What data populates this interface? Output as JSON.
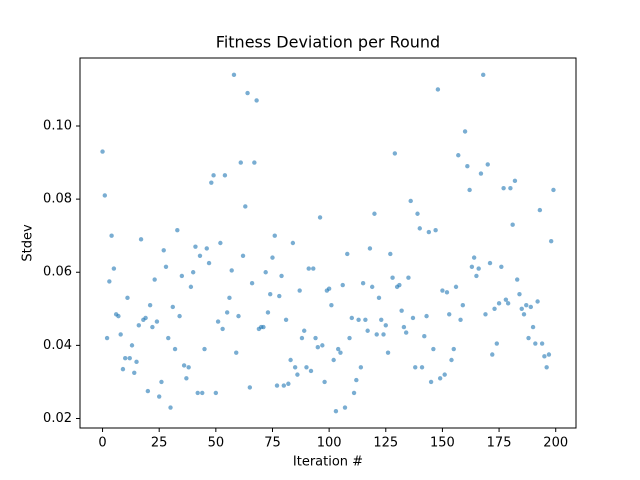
{
  "chart_data": {
    "type": "scatter",
    "title": "Fitness Deviation per Round",
    "x_label": "Iteration #",
    "y_label": "Stdev",
    "color": "#1f77b4",
    "grid": false,
    "xlim": [
      -9.95,
      208.95
    ],
    "ylim": [
      0.0174,
      0.1186
    ],
    "xticks": [
      0,
      25,
      50,
      75,
      100,
      125,
      150,
      175,
      200
    ],
    "yticks": [
      0.02,
      0.04,
      0.06,
      0.08,
      {
        "value": 0.1,
        "label": "0.10"
      }
    ],
    "x": [
      0,
      1,
      2,
      3,
      4,
      5,
      6,
      7,
      8,
      9,
      10,
      11,
      12,
      13,
      14,
      15,
      16,
      17,
      18,
      19,
      20,
      21,
      22,
      23,
      24,
      25,
      26,
      27,
      28,
      29,
      30,
      31,
      32,
      33,
      34,
      35,
      36,
      37,
      38,
      39,
      40,
      41,
      42,
      43,
      44,
      45,
      46,
      47,
      48,
      49,
      50,
      51,
      52,
      53,
      54,
      55,
      56,
      57,
      58,
      59,
      60,
      61,
      62,
      63,
      64,
      65,
      66,
      67,
      68,
      69,
      70,
      71,
      72,
      73,
      74,
      75,
      76,
      77,
      78,
      79,
      80,
      81,
      82,
      83,
      84,
      85,
      86,
      87,
      88,
      89,
      90,
      91,
      92,
      93,
      94,
      95,
      96,
      97,
      98,
      99,
      100,
      101,
      102,
      103,
      104,
      105,
      106,
      107,
      108,
      109,
      110,
      111,
      112,
      113,
      114,
      115,
      116,
      117,
      118,
      119,
      120,
      121,
      122,
      123,
      124,
      125,
      126,
      127,
      128,
      129,
      130,
      131,
      132,
      133,
      134,
      135,
      136,
      137,
      138,
      139,
      140,
      141,
      142,
      143,
      144,
      145,
      146,
      147,
      148,
      149,
      150,
      151,
      152,
      153,
      154,
      155,
      156,
      157,
      158,
      159,
      160,
      161,
      162,
      163,
      164,
      165,
      166,
      167,
      168,
      169,
      170,
      171,
      172,
      173,
      174,
      175,
      176,
      177,
      178,
      179,
      180,
      181,
      182,
      183,
      184,
      185,
      186,
      187,
      188,
      189,
      190,
      191,
      192,
      193,
      194,
      195,
      196,
      197,
      198,
      199
    ],
    "values": [
      0.093,
      0.081,
      0.042,
      0.0575,
      0.07,
      0.061,
      0.0485,
      0.048,
      0.043,
      0.0335,
      0.0365,
      0.053,
      0.0365,
      0.04,
      0.0325,
      0.0355,
      0.0455,
      0.069,
      0.047,
      0.0475,
      0.0275,
      0.051,
      0.045,
      0.058,
      0.0465,
      0.026,
      0.03,
      0.066,
      0.0615,
      0.042,
      0.023,
      0.0505,
      0.039,
      0.0715,
      0.048,
      0.059,
      0.0345,
      0.031,
      0.034,
      0.056,
      0.06,
      0.067,
      0.027,
      0.0645,
      0.027,
      0.039,
      0.0665,
      0.0625,
      0.0845,
      0.0865,
      0.027,
      0.0465,
      0.068,
      0.0445,
      0.0865,
      0.049,
      0.053,
      0.0605,
      0.114,
      0.038,
      0.048,
      0.09,
      0.0645,
      0.078,
      0.109,
      0.0285,
      0.057,
      0.09,
      0.107,
      0.0445,
      0.045,
      0.045,
      0.06,
      0.049,
      0.054,
      0.064,
      0.07,
      0.029,
      0.0535,
      0.059,
      0.029,
      0.047,
      0.0295,
      0.036,
      0.068,
      0.034,
      0.032,
      0.055,
      0.042,
      0.044,
      0.034,
      0.061,
      0.033,
      0.061,
      0.042,
      0.0395,
      0.075,
      0.04,
      0.03,
      0.055,
      0.0555,
      0.051,
      0.036,
      0.022,
      0.039,
      0.038,
      0.0565,
      0.023,
      0.065,
      0.042,
      0.0475,
      0.027,
      0.0305,
      0.047,
      0.034,
      0.057,
      0.047,
      0.044,
      0.0665,
      0.056,
      0.076,
      0.043,
      0.053,
      0.047,
      0.043,
      0.0455,
      0.038,
      0.065,
      0.0585,
      0.0925,
      0.056,
      0.0565,
      0.0495,
      0.045,
      0.0435,
      0.0585,
      0.0795,
      0.0475,
      0.034,
      0.076,
      0.072,
      0.034,
      0.0425,
      0.048,
      0.071,
      0.03,
      0.039,
      0.0715,
      0.11,
      0.031,
      0.055,
      0.032,
      0.0545,
      0.0485,
      0.036,
      0.039,
      0.056,
      0.092,
      0.047,
      0.051,
      0.0985,
      0.089,
      0.0825,
      0.0615,
      0.064,
      0.059,
      0.061,
      0.087,
      0.114,
      0.0485,
      0.0895,
      0.0625,
      0.0375,
      0.05,
      0.0405,
      0.0515,
      0.0615,
      0.083,
      0.0525,
      0.0515,
      0.083,
      0.073,
      0.085,
      0.058,
      0.054,
      0.05,
      0.0485,
      0.051,
      0.042,
      0.0505,
      0.045,
      0.0405,
      0.052,
      0.077,
      0.0405,
      0.037,
      0.034,
      0.0375,
      0.0685,
      0.0825
    ]
  }
}
